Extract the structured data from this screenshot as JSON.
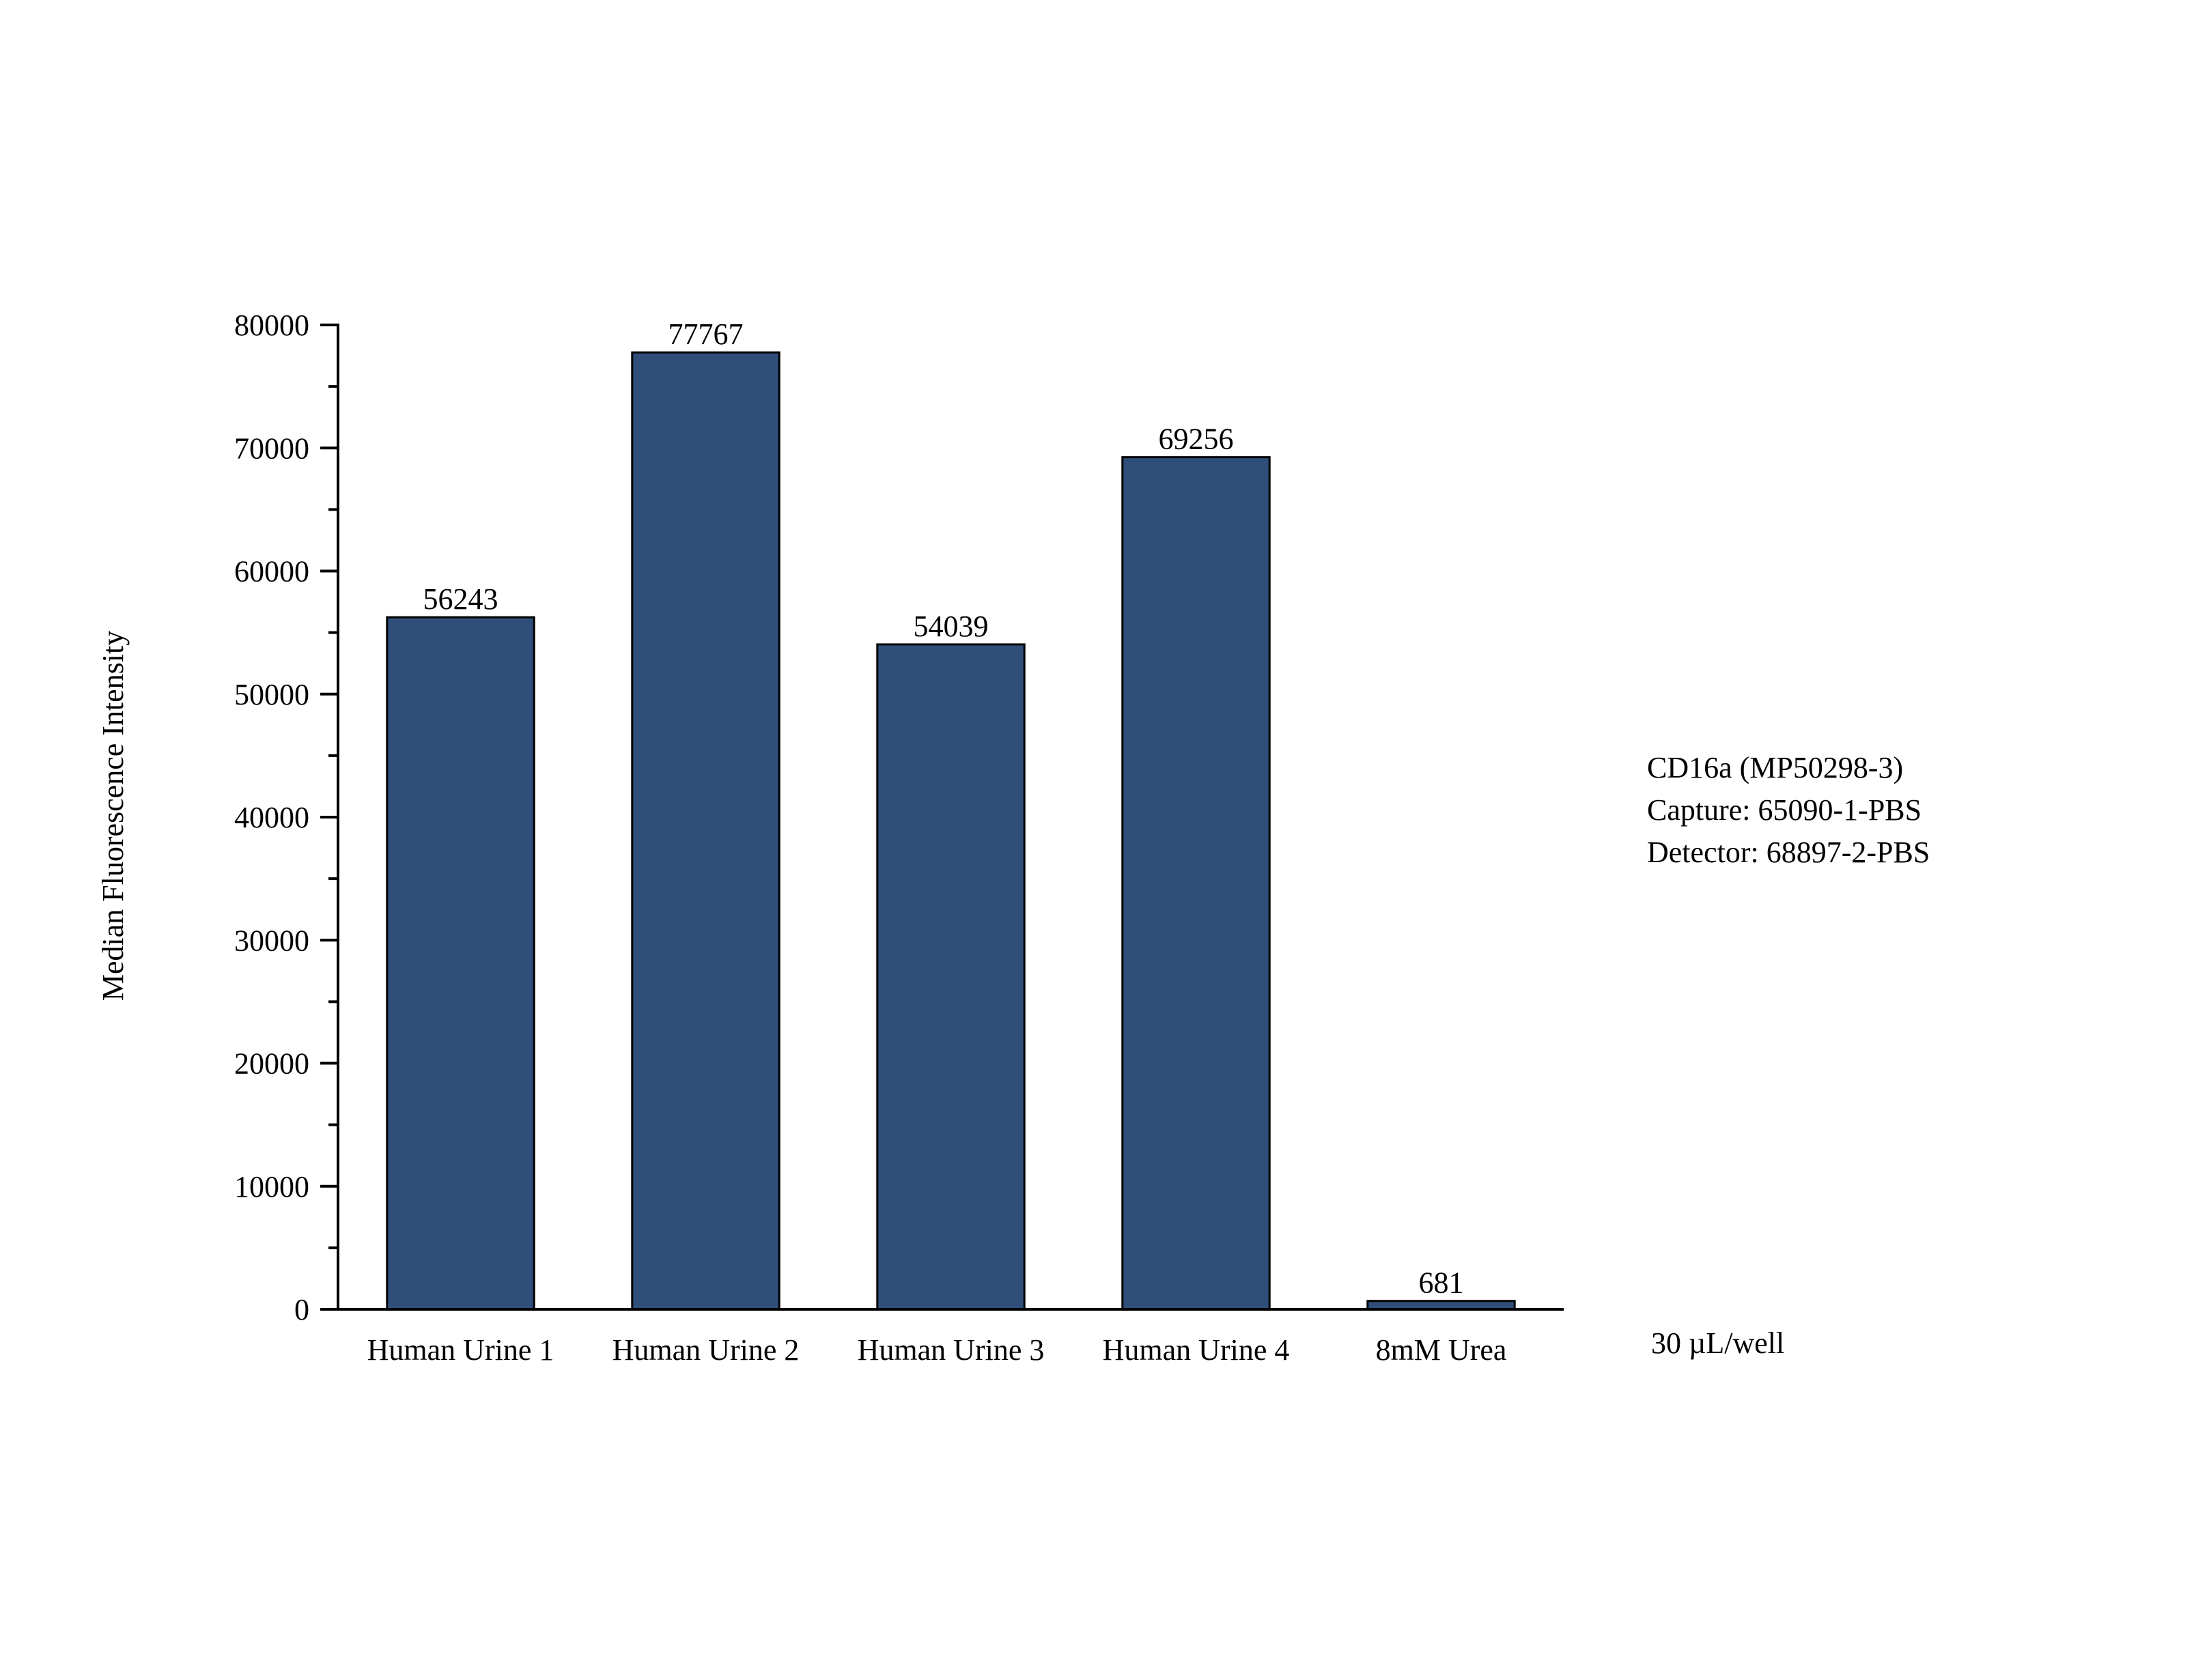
{
  "chart_data": {
    "type": "bar",
    "categories": [
      "Human Urine 1",
      "Human Urine 2",
      "Human Urine 3",
      "Human Urine 4",
      "8mM Urea"
    ],
    "values": [
      56243,
      77767,
      54039,
      69256,
      681
    ],
    "data_labels": [
      "56243",
      "77767",
      "54039",
      "69256",
      "681"
    ],
    "ylabel": "Median Fluorescence Intensity",
    "xlabel": "",
    "ylim": [
      0,
      80000
    ],
    "yticks": [
      0,
      10000,
      20000,
      30000,
      40000,
      50000,
      60000,
      70000,
      80000
    ],
    "ytick_labels": [
      "0",
      "10000",
      "20000",
      "30000",
      "40000",
      "50000",
      "60000",
      "70000",
      "80000"
    ],
    "grid": false,
    "bar_color": "#2f4f7a",
    "bar_edge_color": "#000000"
  },
  "annotation": {
    "lines": [
      "CD16a (MP50298-3)",
      "Capture: 65090-1-PBS",
      "Detector: 68897-2-PBS"
    ]
  },
  "footnote": "30 µL/well"
}
